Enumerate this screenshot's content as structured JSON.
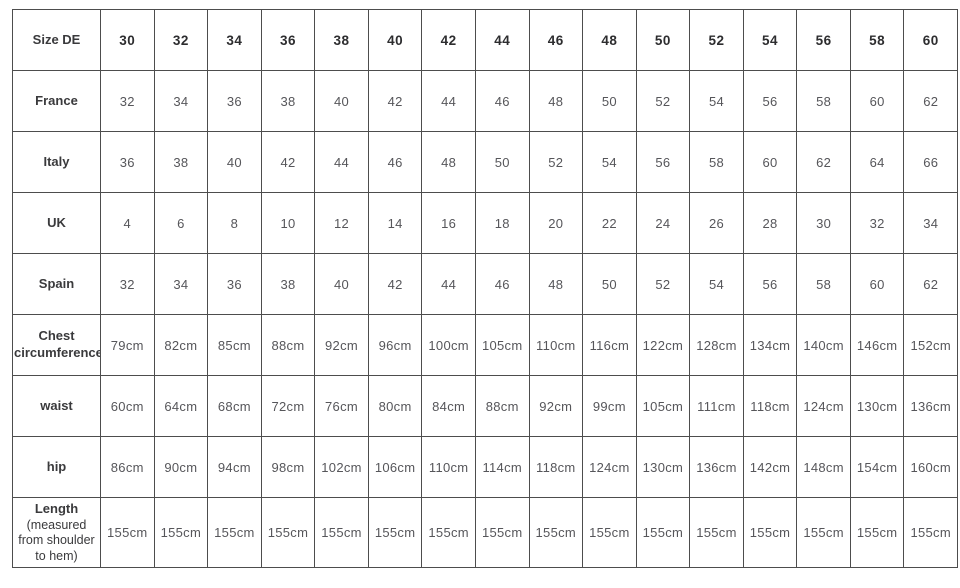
{
  "table": {
    "column_count": 17,
    "rows": [
      {
        "label": "Size DE",
        "header": true,
        "values": [
          "30",
          "32",
          "34",
          "36",
          "38",
          "40",
          "42",
          "44",
          "46",
          "48",
          "50",
          "52",
          "54",
          "56",
          "58",
          "60"
        ]
      },
      {
        "label": "France",
        "header": false,
        "values": [
          "32",
          "34",
          "36",
          "38",
          "40",
          "42",
          "44",
          "46",
          "48",
          "50",
          "52",
          "54",
          "56",
          "58",
          "60",
          "62"
        ]
      },
      {
        "label": "Italy",
        "header": false,
        "values": [
          "36",
          "38",
          "40",
          "42",
          "44",
          "46",
          "48",
          "50",
          "52",
          "54",
          "56",
          "58",
          "60",
          "62",
          "64",
          "66"
        ]
      },
      {
        "label": "UK",
        "header": false,
        "values": [
          "4",
          "6",
          "8",
          "10",
          "12",
          "14",
          "16",
          "18",
          "20",
          "22",
          "24",
          "26",
          "28",
          "30",
          "32",
          "34"
        ]
      },
      {
        "label": "Spain",
        "header": false,
        "values": [
          "32",
          "34",
          "36",
          "38",
          "40",
          "42",
          "44",
          "46",
          "48",
          "50",
          "52",
          "54",
          "56",
          "58",
          "60",
          "62"
        ]
      },
      {
        "label": "Chest circumference",
        "header": false,
        "values": [
          "79cm",
          "82cm",
          "85cm",
          "88cm",
          "92cm",
          "96cm",
          "100cm",
          "105cm",
          "110cm",
          "116cm",
          "122cm",
          "128cm",
          "134cm",
          "140cm",
          "146cm",
          "152cm"
        ]
      },
      {
        "label": "waist",
        "header": false,
        "values": [
          "60cm",
          "64cm",
          "68cm",
          "72cm",
          "76cm",
          "80cm",
          "84cm",
          "88cm",
          "92cm",
          "99cm",
          "105cm",
          "111cm",
          "118cm",
          "124cm",
          "130cm",
          "136cm"
        ]
      },
      {
        "label": "hip",
        "header": false,
        "values": [
          "86cm",
          "90cm",
          "94cm",
          "98cm",
          "102cm",
          "106cm",
          "110cm",
          "114cm",
          "118cm",
          "124cm",
          "130cm",
          "136cm",
          "142cm",
          "148cm",
          "154cm",
          "160cm"
        ]
      },
      {
        "label": "Length",
        "sublabel": "(measured from shoulder to hem)",
        "header": false,
        "values": [
          "155cm",
          "155cm",
          "155cm",
          "155cm",
          "155cm",
          "155cm",
          "155cm",
          "155cm",
          "155cm",
          "155cm",
          "155cm",
          "155cm",
          "155cm",
          "155cm",
          "155cm",
          "155cm"
        ]
      }
    ]
  },
  "colors": {
    "border": "#4d4d4d",
    "label_text": "#3a3a3c",
    "value_text": "#56565a",
    "header_text": "#2d2d2f",
    "background": "#ffffff"
  }
}
